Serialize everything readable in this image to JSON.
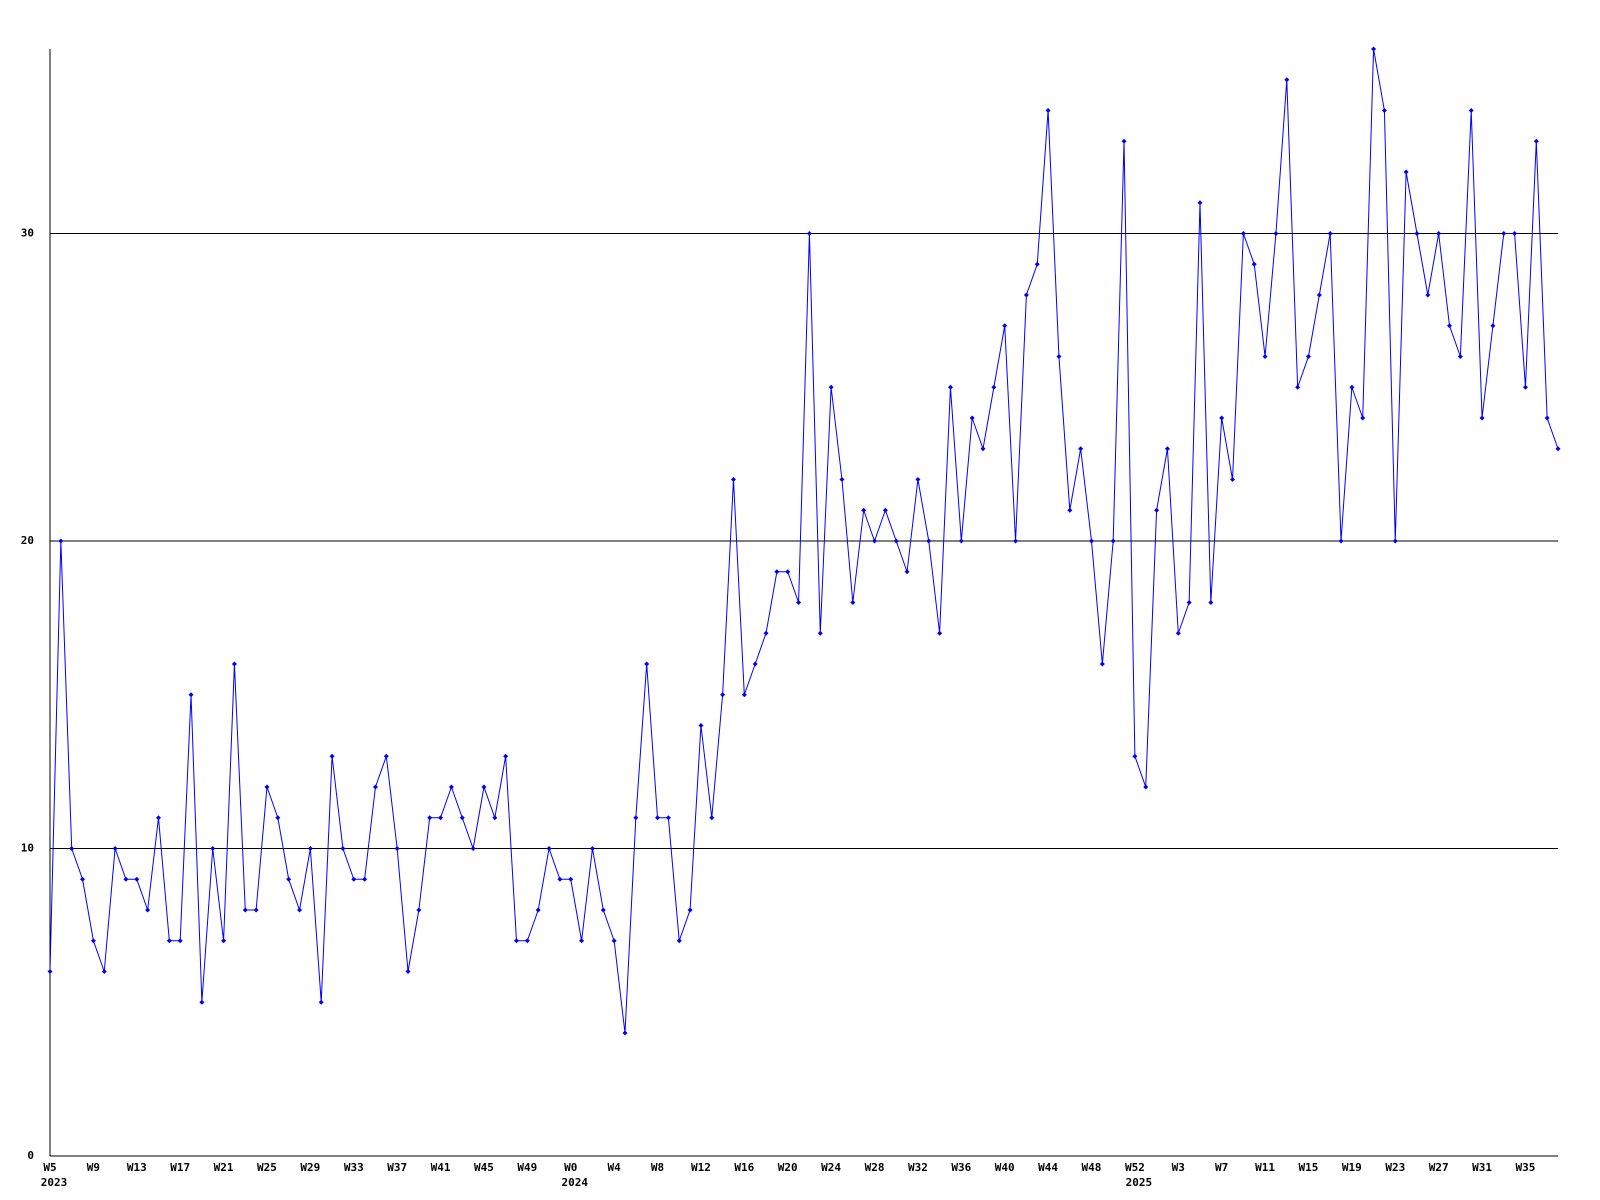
{
  "chart_data": {
    "type": "line",
    "color": "#0000ff",
    "grid": true,
    "ylim": [
      0,
      36
    ],
    "yticks": [
      0,
      10,
      20,
      30
    ],
    "categories": [
      "W5",
      null,
      null,
      null,
      "W9",
      null,
      null,
      null,
      "W13",
      null,
      null,
      null,
      "W17",
      null,
      null,
      null,
      "W21",
      null,
      null,
      null,
      "W25",
      null,
      null,
      null,
      "W29",
      null,
      null,
      null,
      "W33",
      null,
      null,
      null,
      "W37",
      null,
      null,
      null,
      "W41",
      null,
      null,
      null,
      "W45",
      null,
      null,
      null,
      "W49",
      null,
      null,
      null,
      "W0",
      null,
      null,
      null,
      "W4",
      null,
      null,
      null,
      "W8",
      null,
      null,
      null,
      "W12",
      null,
      null,
      null,
      "W16",
      null,
      null,
      null,
      "W20",
      null,
      null,
      null,
      "W24",
      null,
      null,
      null,
      "W28",
      null,
      null,
      null,
      "W32",
      null,
      null,
      null,
      "W36",
      null,
      null,
      null,
      "W40",
      null,
      null,
      null,
      "W44",
      null,
      null,
      null,
      "W48",
      null,
      null,
      null,
      "W52",
      null,
      null,
      null,
      "W3",
      null,
      null,
      null,
      "W7",
      null,
      null,
      null,
      "W11",
      null,
      null,
      null,
      "W15",
      null,
      null,
      null,
      "W19",
      null,
      null,
      null,
      "W23",
      null,
      null,
      null,
      "W27",
      null,
      null,
      null,
      "W31",
      null,
      null,
      null,
      "W35",
      null,
      null,
      null
    ],
    "years": [
      "2023",
      null,
      null,
      null,
      null,
      null,
      null,
      null,
      null,
      null,
      null,
      null,
      null,
      null,
      null,
      null,
      null,
      null,
      null,
      null,
      null,
      null,
      null,
      null,
      null,
      null,
      null,
      null,
      null,
      null,
      null,
      null,
      null,
      null,
      null,
      null,
      null,
      null,
      null,
      null,
      null,
      null,
      null,
      null,
      null,
      null,
      null,
      null,
      "2024",
      null,
      null,
      null,
      null,
      null,
      null,
      null,
      null,
      null,
      null,
      null,
      null,
      null,
      null,
      null,
      null,
      null,
      null,
      null,
      null,
      null,
      null,
      null,
      null,
      null,
      null,
      null,
      null,
      null,
      null,
      null,
      null,
      null,
      null,
      null,
      null,
      null,
      null,
      null,
      null,
      null,
      null,
      null,
      null,
      null,
      null,
      null,
      null,
      null,
      null,
      null,
      "2025",
      null,
      null,
      null,
      null,
      null,
      null,
      null,
      null,
      null,
      null,
      null,
      null,
      null,
      null,
      null,
      null,
      null,
      null,
      null,
      null,
      null,
      null,
      null,
      null,
      null,
      null,
      null,
      null,
      null,
      null,
      null,
      null,
      null,
      null,
      null,
      null,
      null,
      null,
      null
    ],
    "values": [
      6,
      20,
      10,
      9,
      7,
      6,
      10,
      9,
      9,
      8,
      11,
      7,
      7,
      15,
      5,
      10,
      7,
      16,
      8,
      8,
      12,
      11,
      9,
      8,
      10,
      5,
      13,
      10,
      9,
      9,
      12,
      13,
      10,
      6,
      8,
      11,
      11,
      12,
      11,
      10,
      12,
      11,
      13,
      7,
      7,
      8,
      10,
      9,
      9,
      7,
      10,
      8,
      7,
      4,
      11,
      16,
      11,
      11,
      7,
      8,
      14,
      11,
      15,
      22,
      15,
      16,
      17,
      19,
      19,
      18,
      30,
      17,
      25,
      22,
      18,
      21,
      20,
      21,
      20,
      19,
      22,
      20,
      17,
      25,
      20,
      24,
      23,
      25,
      27,
      20,
      28,
      29,
      34,
      26,
      21,
      23,
      20,
      16,
      20,
      33,
      13,
      12,
      21,
      23,
      17,
      18,
      31,
      18,
      24,
      22,
      30,
      29,
      26,
      30,
      35,
      25,
      26,
      28,
      30,
      20,
      25,
      24,
      36,
      34,
      20,
      32,
      30,
      28,
      30,
      27,
      26,
      34,
      24,
      27,
      30,
      30,
      25,
      33,
      24,
      23
    ]
  }
}
